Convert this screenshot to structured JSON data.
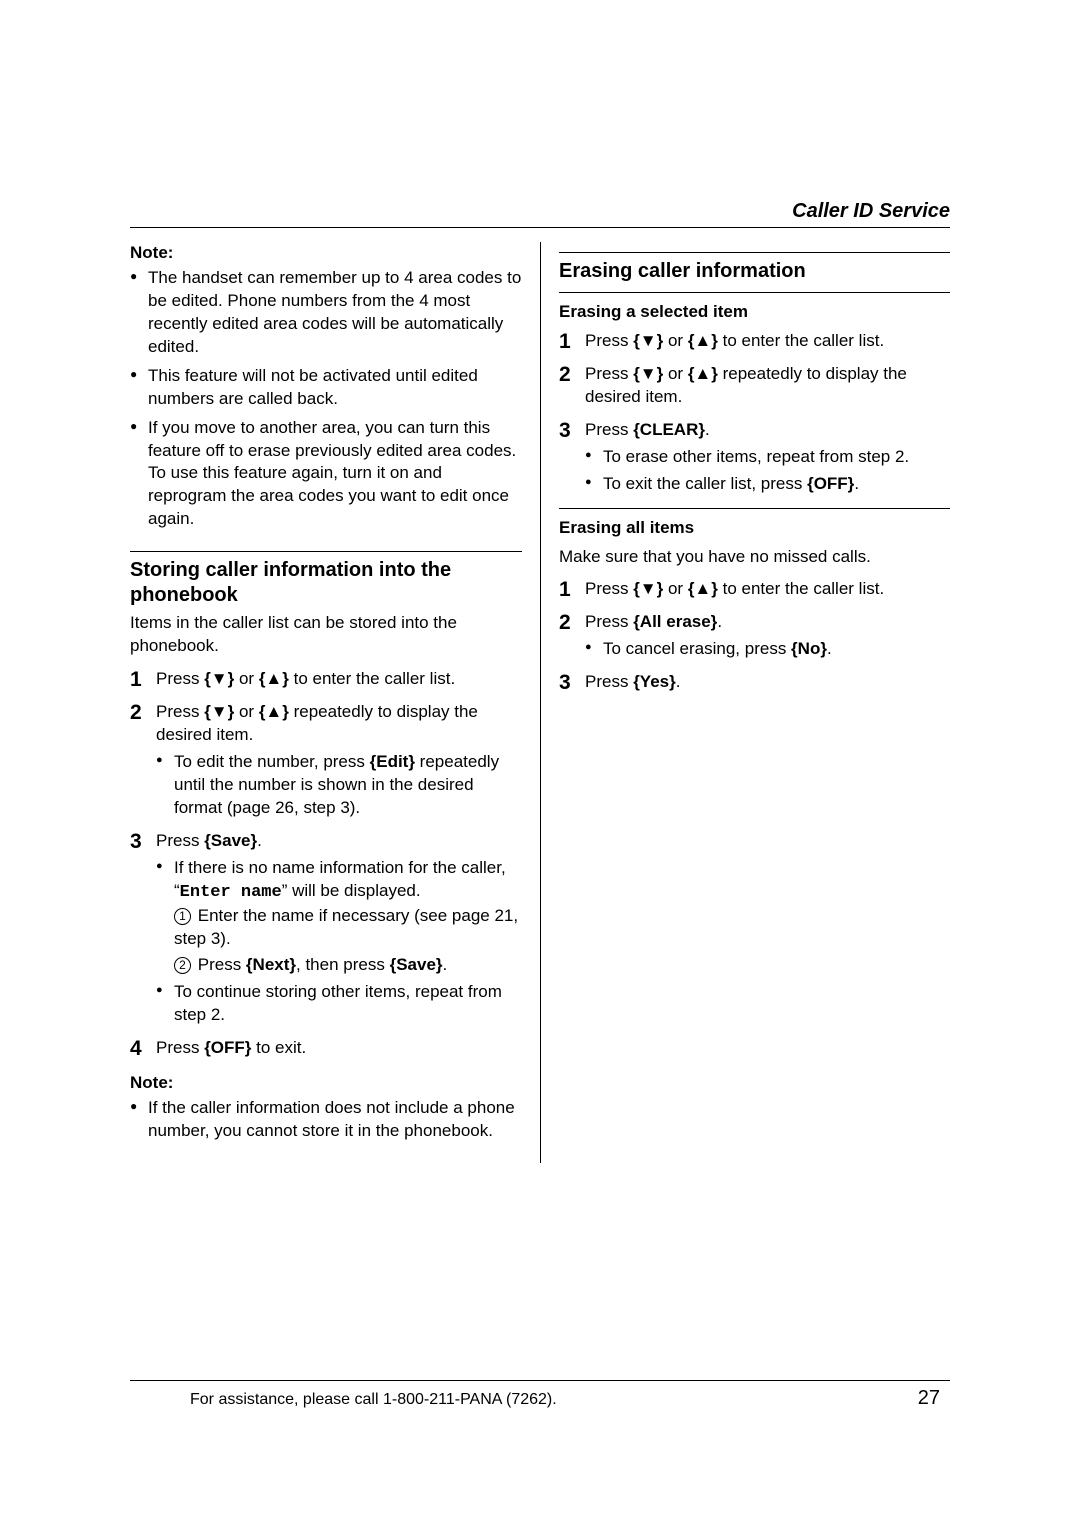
{
  "header": {
    "title": "Caller ID Service"
  },
  "left": {
    "note_label": "Note:",
    "note_bullets": [
      "The handset can remember up to 4 area codes to be edited. Phone numbers from the 4 most recently edited area codes will be automatically edited.",
      "This feature will not be activated until edited numbers are called back.",
      "If you move to another area, you can turn this feature off to erase previously edited area codes. To use this feature again, turn it on and reprogram the area codes you want to edit once again."
    ],
    "sec1": {
      "heading": "Storing caller information into the phonebook",
      "intro": "Items in the caller list can be stored into the phonebook.",
      "step1_a": "Press ",
      "step1_b": " or ",
      "step1_c": " to enter the caller list.",
      "step2_a": "Press ",
      "step2_b": " or ",
      "step2_c": " repeatedly to display the desired item.",
      "step2_sub_a": "To edit the number, press ",
      "step2_sub_key": "{Edit}",
      "step2_sub_b": " repeatedly until the number is shown in the desired format (page 26, step 3).",
      "step3_a": "Press ",
      "step3_key": "{Save}",
      "step3_b": ".",
      "step3_sub1_a": "If there is no name information for the caller, “",
      "step3_sub1_code": "Enter name",
      "step3_sub1_b": "” will be displayed.",
      "step3_sub1_c1_a": "Enter the name if necessary (see page 21, step 3).",
      "step3_sub1_c2_a": "Press ",
      "step3_sub1_c2_key1": "{Next}",
      "step3_sub1_c2_b": ", then press ",
      "step3_sub1_c2_key2": "{Save}",
      "step3_sub1_c2_c": ".",
      "step3_sub2": "To continue storing other items, repeat from step 2.",
      "step4_a": "Press ",
      "step4_key": "{OFF}",
      "step4_b": " to exit.",
      "note2_label": "Note:",
      "note2_bullet": "If the caller information does not include a phone number, you cannot store it in the phonebook."
    }
  },
  "right": {
    "sec_heading": "Erasing caller information",
    "sub1": {
      "heading": "Erasing a selected item",
      "step1_a": "Press ",
      "step1_b": " or ",
      "step1_c": " to enter the caller list.",
      "step2_a": "Press ",
      "step2_b": " or ",
      "step2_c": " repeatedly to display the desired item.",
      "step3_a": "Press ",
      "step3_key": "{CLEAR}",
      "step3_b": ".",
      "step3_sub1": "To erase other items, repeat from step 2.",
      "step3_sub2_a": "To exit the caller list, press ",
      "step3_sub2_key": "{OFF}",
      "step3_sub2_b": "."
    },
    "sub2": {
      "heading": "Erasing all items",
      "intro": "Make sure that you have no missed calls.",
      "step1_a": "Press ",
      "step1_b": " or ",
      "step1_c": " to enter the caller list.",
      "step2_a": "Press ",
      "step2_key": "{All erase}",
      "step2_b": ".",
      "step2_sub_a": "To cancel erasing, press ",
      "step2_sub_key": "{No}",
      "step2_sub_b": ".",
      "step3_a": "Press ",
      "step3_key": "{Yes}",
      "step3_b": "."
    }
  },
  "keys": {
    "down": "{▼}",
    "up": "{▲}"
  },
  "footer": {
    "text": "For assistance, please call 1-800-211-PANA (7262).",
    "page": "27"
  }
}
